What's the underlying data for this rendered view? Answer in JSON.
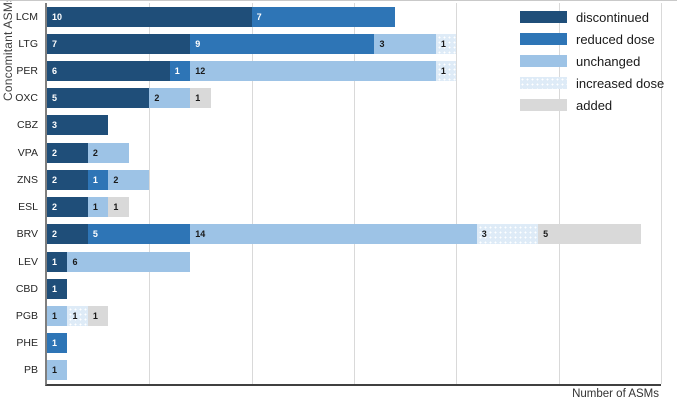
{
  "chart_data": {
    "type": "bar",
    "orientation": "horizontal",
    "stacked": true,
    "title": "",
    "xlabel": "Number of ASMs",
    "ylabel": "Concomitant ASMs",
    "xlim": [
      0,
      30
    ],
    "grid_interval": 5,
    "grid_on": true,
    "legend_position": "top-right",
    "categories": [
      "LCM",
      "LTG",
      "PER",
      "OXC",
      "CBZ",
      "VPA",
      "ZNS",
      "ESL",
      "BRV",
      "LEV",
      "CBD",
      "PGB",
      "PHE",
      "PB"
    ],
    "series": [
      {
        "name": "discontinued",
        "color": "#1F4E79",
        "pattern": "solid",
        "value_label_color": "#FFFFFF",
        "values": [
          10,
          7,
          6,
          5,
          3,
          2,
          2,
          2,
          2,
          1,
          1,
          0,
          0,
          0
        ]
      },
      {
        "name": "reduced dose",
        "color": "#2E75B6",
        "pattern": "solid",
        "value_label_color": "#FFFFFF",
        "values": [
          7,
          9,
          1,
          0,
          0,
          0,
          1,
          0,
          5,
          0,
          0,
          0,
          1,
          0
        ]
      },
      {
        "name": "unchanged",
        "color": "#9DC3E6",
        "pattern": "solid",
        "value_label_color": "#1A1A1A",
        "values": [
          0,
          3,
          12,
          2,
          0,
          2,
          2,
          1,
          14,
          6,
          0,
          1,
          0,
          1
        ]
      },
      {
        "name": "increased dose",
        "color": "#DEEBF7",
        "pattern": "dots",
        "value_label_color": "#1A1A1A",
        "values": [
          0,
          1,
          1,
          0,
          0,
          0,
          0,
          0,
          3,
          0,
          0,
          1,
          0,
          0
        ]
      },
      {
        "name": "added",
        "color": "#D9D9D9",
        "pattern": "solid",
        "value_label_color": "#1A1A1A",
        "values": [
          0,
          0,
          0,
          1,
          0,
          0,
          0,
          1,
          5,
          0,
          0,
          1,
          0,
          0
        ]
      }
    ]
  },
  "style_colors": {
    "gridline": "#D9D9D9",
    "left_axis_line": "#7F7F7F",
    "bottom_axis_line": "#404040",
    "background": "#FFFFFF",
    "top_border": "#C9C9C9"
  }
}
